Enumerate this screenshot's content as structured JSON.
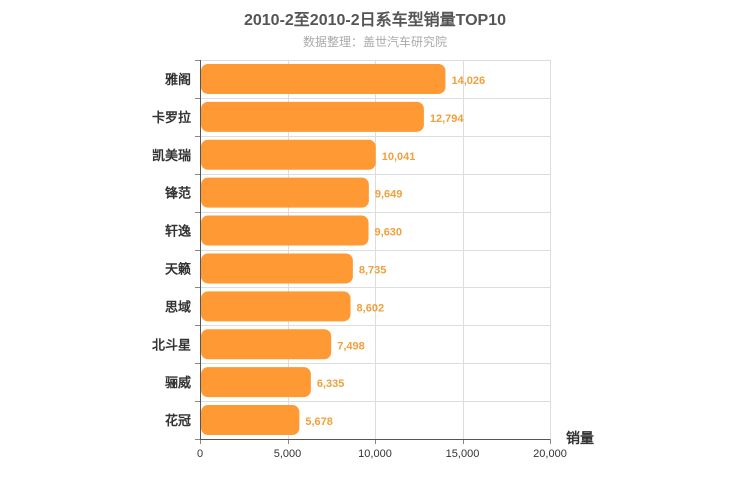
{
  "chart_data": {
    "type": "bar",
    "orientation": "horizontal",
    "title": "2010-2至2010-2日系车型销量TOP10",
    "subtitle": "数据整理：盖世汽车研究院",
    "categories": [
      "雅阁",
      "卡罗拉",
      "凯美瑞",
      "锋范",
      "轩逸",
      "天籁",
      "思域",
      "北斗星",
      "骊威",
      "花冠"
    ],
    "values": [
      14026,
      12794,
      10041,
      9649,
      9630,
      8735,
      8602,
      7498,
      6335,
      5678
    ],
    "value_labels": [
      "14,026",
      "12,794",
      "10,041",
      "9,649",
      "9,630",
      "8,735",
      "8,602",
      "7,498",
      "6,335",
      "5,678"
    ],
    "xlabel": "销量",
    "ylabel": "",
    "xlim": [
      0,
      20000
    ],
    "x_ticks": [
      0,
      5000,
      10000,
      15000,
      20000
    ],
    "x_tick_labels": [
      "0",
      "5,000",
      "10,000",
      "15,000",
      "20,000"
    ],
    "grid": true,
    "bar_color": "#ff9933",
    "label_color": "#f0a03c"
  }
}
